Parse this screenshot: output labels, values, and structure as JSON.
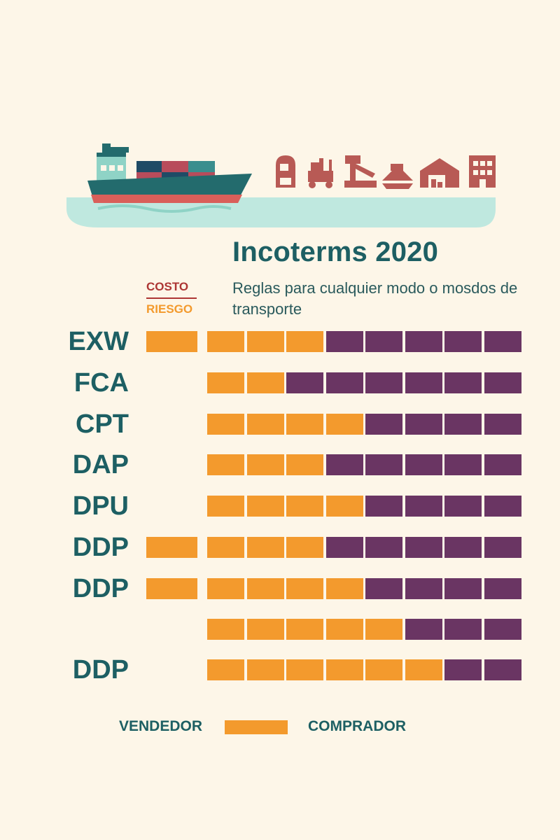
{
  "header": {
    "title": "Incoterms 2020",
    "subtitle": "Reglas para cualquier modo o mosdos de transporte"
  },
  "legend_top": {
    "cost_label": "COSTO",
    "risk_label": "RIESGO"
  },
  "legend_bottom": {
    "seller_label": "VENDEDOR",
    "buyer_label": "COMPRADOR"
  },
  "colors": {
    "seller": "#f39a2d",
    "buyer": "#6a3563",
    "text": "#1d5f63",
    "cost": "#ad3634",
    "water": "#bfe8df",
    "hull": "#236b6d",
    "hull_stripe": "#d95f5a",
    "icons": "#b85a55"
  },
  "icons": [
    "ship-icon",
    "customs-office-icon",
    "forklift-icon",
    "crane-icon",
    "loading-ship-icon",
    "warehouse-icon",
    "building-icon"
  ],
  "matrix": {
    "steps": 8,
    "rows": [
      {
        "code": "EXW",
        "extra_seller_block": true,
        "seller_steps": 3
      },
      {
        "code": "FCA",
        "extra_seller_block": false,
        "seller_steps": 2
      },
      {
        "code": "CPT",
        "extra_seller_block": false,
        "seller_steps": 4
      },
      {
        "code": "DAP",
        "extra_seller_block": false,
        "seller_steps": 3
      },
      {
        "code": "DPU",
        "extra_seller_block": false,
        "seller_steps": 4
      },
      {
        "code": "DDP",
        "extra_seller_block": true,
        "seller_steps": 3
      },
      {
        "code": "DDP",
        "extra_seller_block": true,
        "seller_steps": 4
      },
      {
        "code": "",
        "extra_seller_block": false,
        "seller_steps": 5
      },
      {
        "code": "DDP",
        "extra_seller_block": false,
        "seller_steps": 6
      }
    ]
  }
}
